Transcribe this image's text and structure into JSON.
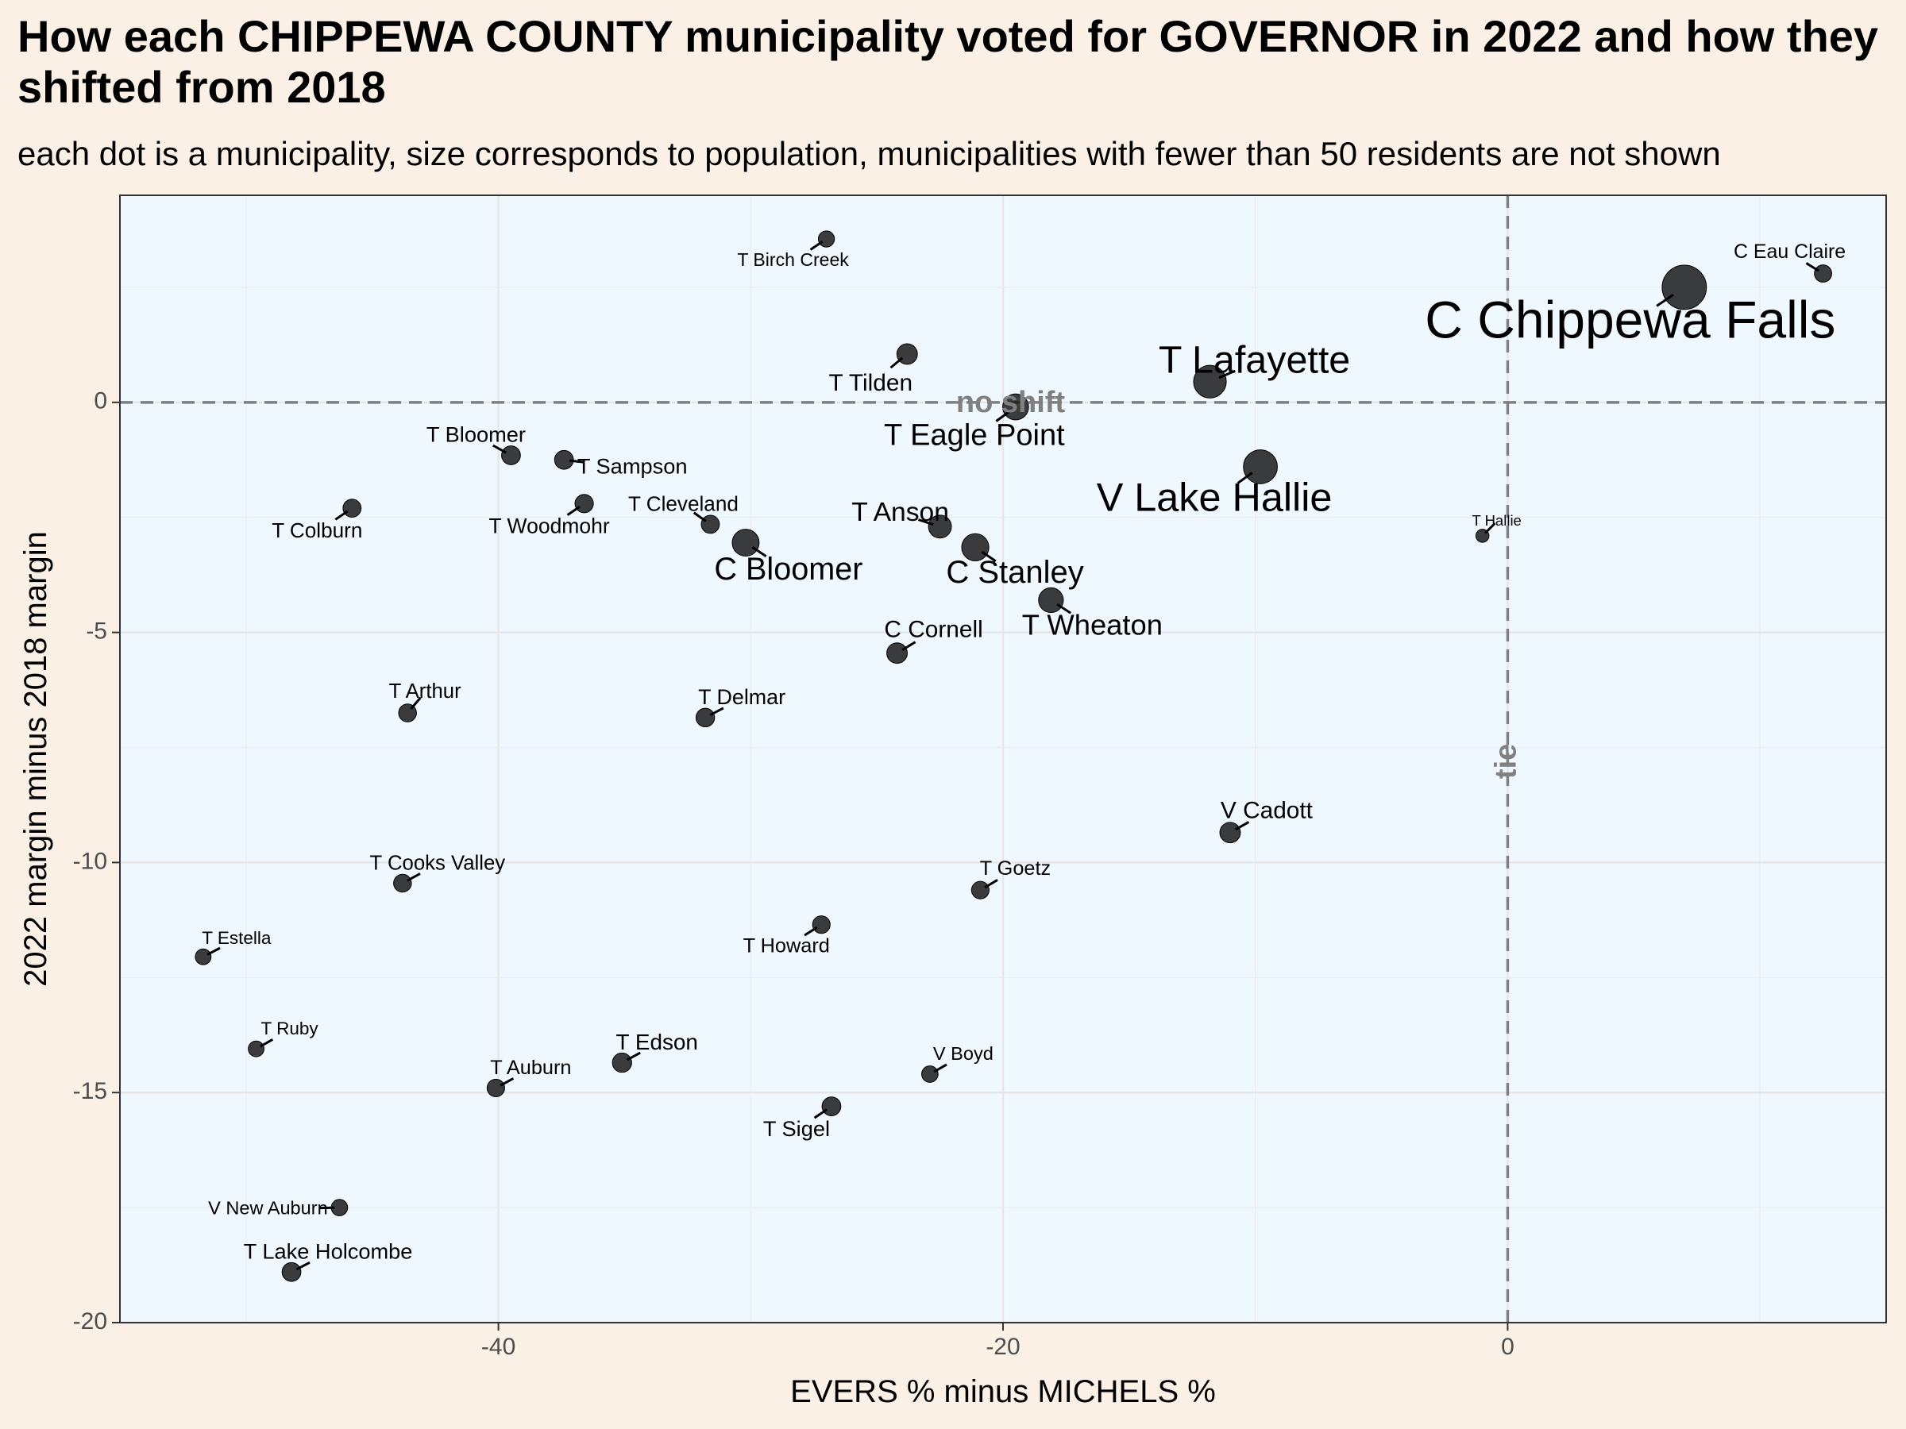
{
  "chart_data": {
    "type": "scatter",
    "title": "How each CHIPPEWA COUNTY municipality voted for GOVERNOR in 2022 and how they shifted from 2018",
    "subtitle": "each dot is a municipality, size corresponds to population, municipalities with fewer than 50 residents are not shown",
    "xlabel": "EVERS % minus MICHELS %",
    "ylabel": "2022 margin minus 2018 margin",
    "xlim": [
      -55,
      15
    ],
    "ylim": [
      -20,
      4.5
    ],
    "xticks": [
      -40,
      -20,
      0
    ],
    "yticks": [
      0,
      -5,
      -10,
      -15,
      -20
    ],
    "grid": true,
    "reference_lines": {
      "vertical_label": "tie",
      "horizontal_label": "no shift"
    },
    "colors": {
      "background": "#faf0e6",
      "panel": "#f0f8ff",
      "point": "#1a1a1a",
      "reference": "#808080"
    },
    "points": [
      {
        "name": "T Birch Creek",
        "x": -27.0,
        "y": 3.55,
        "pop": 500
      },
      {
        "name": "C Eau Claire",
        "x": 12.5,
        "y": 2.8,
        "pop": 700
      },
      {
        "name": "C Chippewa Falls",
        "x": 7.0,
        "y": 2.5,
        "pop": 14000
      },
      {
        "name": "T Tilden",
        "x": -23.8,
        "y": 1.05,
        "pop": 1400
      },
      {
        "name": "T Lafayette",
        "x": -11.8,
        "y": 0.45,
        "pop": 6200
      },
      {
        "name": "T Eagle Point",
        "x": -19.5,
        "y": -0.1,
        "pop": 3100
      },
      {
        "name": "V Lake Hallie",
        "x": -9.8,
        "y": -1.4,
        "pop": 6900
      },
      {
        "name": "T Bloomer",
        "x": -39.5,
        "y": -1.15,
        "pop": 1000
      },
      {
        "name": "T Sampson",
        "x": -37.4,
        "y": -1.25,
        "pop": 1000
      },
      {
        "name": "T Woodmohr",
        "x": -36.6,
        "y": -2.2,
        "pop": 900
      },
      {
        "name": "T Colburn",
        "x": -45.8,
        "y": -2.3,
        "pop": 850
      },
      {
        "name": "T Hallie",
        "x": -1.0,
        "y": -2.9,
        "pop": 150
      },
      {
        "name": "T Cleveland",
        "x": -31.6,
        "y": -2.65,
        "pop": 850
      },
      {
        "name": "C Bloomer",
        "x": -30.2,
        "y": -3.05,
        "pop": 3500
      },
      {
        "name": "T Anson",
        "x": -22.5,
        "y": -2.7,
        "pop": 2100
      },
      {
        "name": "C Stanley",
        "x": -21.1,
        "y": -3.15,
        "pop": 3600
      },
      {
        "name": "T Wheaton",
        "x": -18.1,
        "y": -4.3,
        "pop": 2700
      },
      {
        "name": "C Cornell",
        "x": -24.2,
        "y": -5.45,
        "pop": 1400
      },
      {
        "name": "T Arthur",
        "x": -43.6,
        "y": -6.75,
        "pop": 800
      },
      {
        "name": "T Delmar",
        "x": -31.8,
        "y": -6.85,
        "pop": 950
      },
      {
        "name": "V Cadott",
        "x": -11.0,
        "y": -9.35,
        "pop": 1400
      },
      {
        "name": "T Cooks Valley",
        "x": -43.8,
        "y": -10.45,
        "pop": 800
      },
      {
        "name": "T Goetz",
        "x": -20.9,
        "y": -10.6,
        "pop": 750
      },
      {
        "name": "T Howard",
        "x": -27.2,
        "y": -11.35,
        "pop": 750
      },
      {
        "name": "T Estella",
        "x": -51.7,
        "y": -12.05,
        "pop": 450
      },
      {
        "name": "T Ruby",
        "x": -49.6,
        "y": -14.05,
        "pop": 450
      },
      {
        "name": "T Edson",
        "x": -35.1,
        "y": -14.35,
        "pop": 1100
      },
      {
        "name": "V Boyd",
        "x": -22.9,
        "y": -14.6,
        "pop": 550
      },
      {
        "name": "T Auburn",
        "x": -40.1,
        "y": -14.9,
        "pop": 750
      },
      {
        "name": "T Sigel",
        "x": -26.8,
        "y": -15.3,
        "pop": 1000
      },
      {
        "name": "V New Auburn",
        "x": -46.3,
        "y": -17.5,
        "pop": 550
      },
      {
        "name": "T Lake Holcombe",
        "x": -48.2,
        "y": -18.9,
        "pop": 1000
      }
    ]
  }
}
